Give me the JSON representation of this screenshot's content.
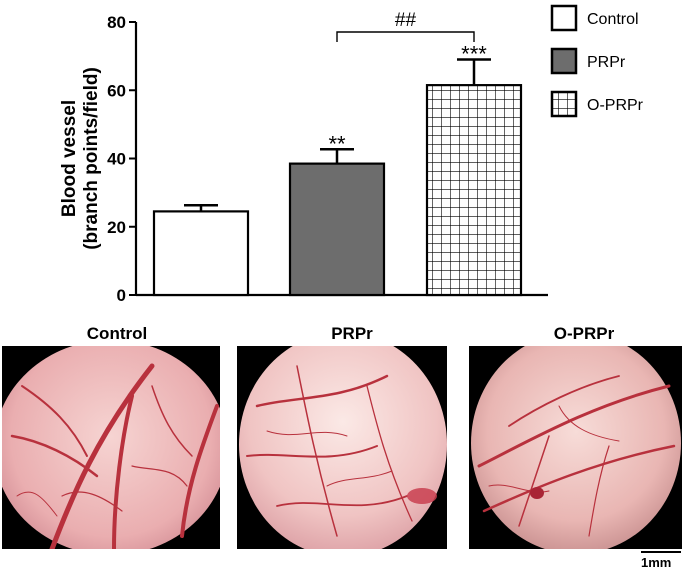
{
  "chart_data": {
    "type": "bar",
    "ylabel_line1": "Blood vessel",
    "ylabel_line2": "(branch points/field)",
    "ylim": [
      0,
      80
    ],
    "yticks": [
      0,
      20,
      40,
      60,
      80
    ],
    "categories": [
      "Control",
      "PRPr",
      "O-PRPr"
    ],
    "values": [
      24.5,
      38.5,
      61.5
    ],
    "errors": [
      1.8,
      4.2,
      7.5
    ],
    "annotations": [
      "",
      "**",
      "***"
    ],
    "bracket": {
      "from": "PRPr",
      "to": "O-PRPr",
      "label": "##"
    },
    "legend": [
      "Control",
      "PRPr",
      "O-PRPr"
    ],
    "legend_placement": "top-right",
    "fills": [
      "#ffffff",
      "#6d6d6d",
      "grid"
    ]
  },
  "panels": [
    "Control",
    "PRPr",
    "O-PRPr"
  ],
  "scale_label": "1mm",
  "colors": {
    "bar_dark": "#6d6d6d",
    "vessel": "#b8313d",
    "tissue": "#f1c9c8"
  }
}
